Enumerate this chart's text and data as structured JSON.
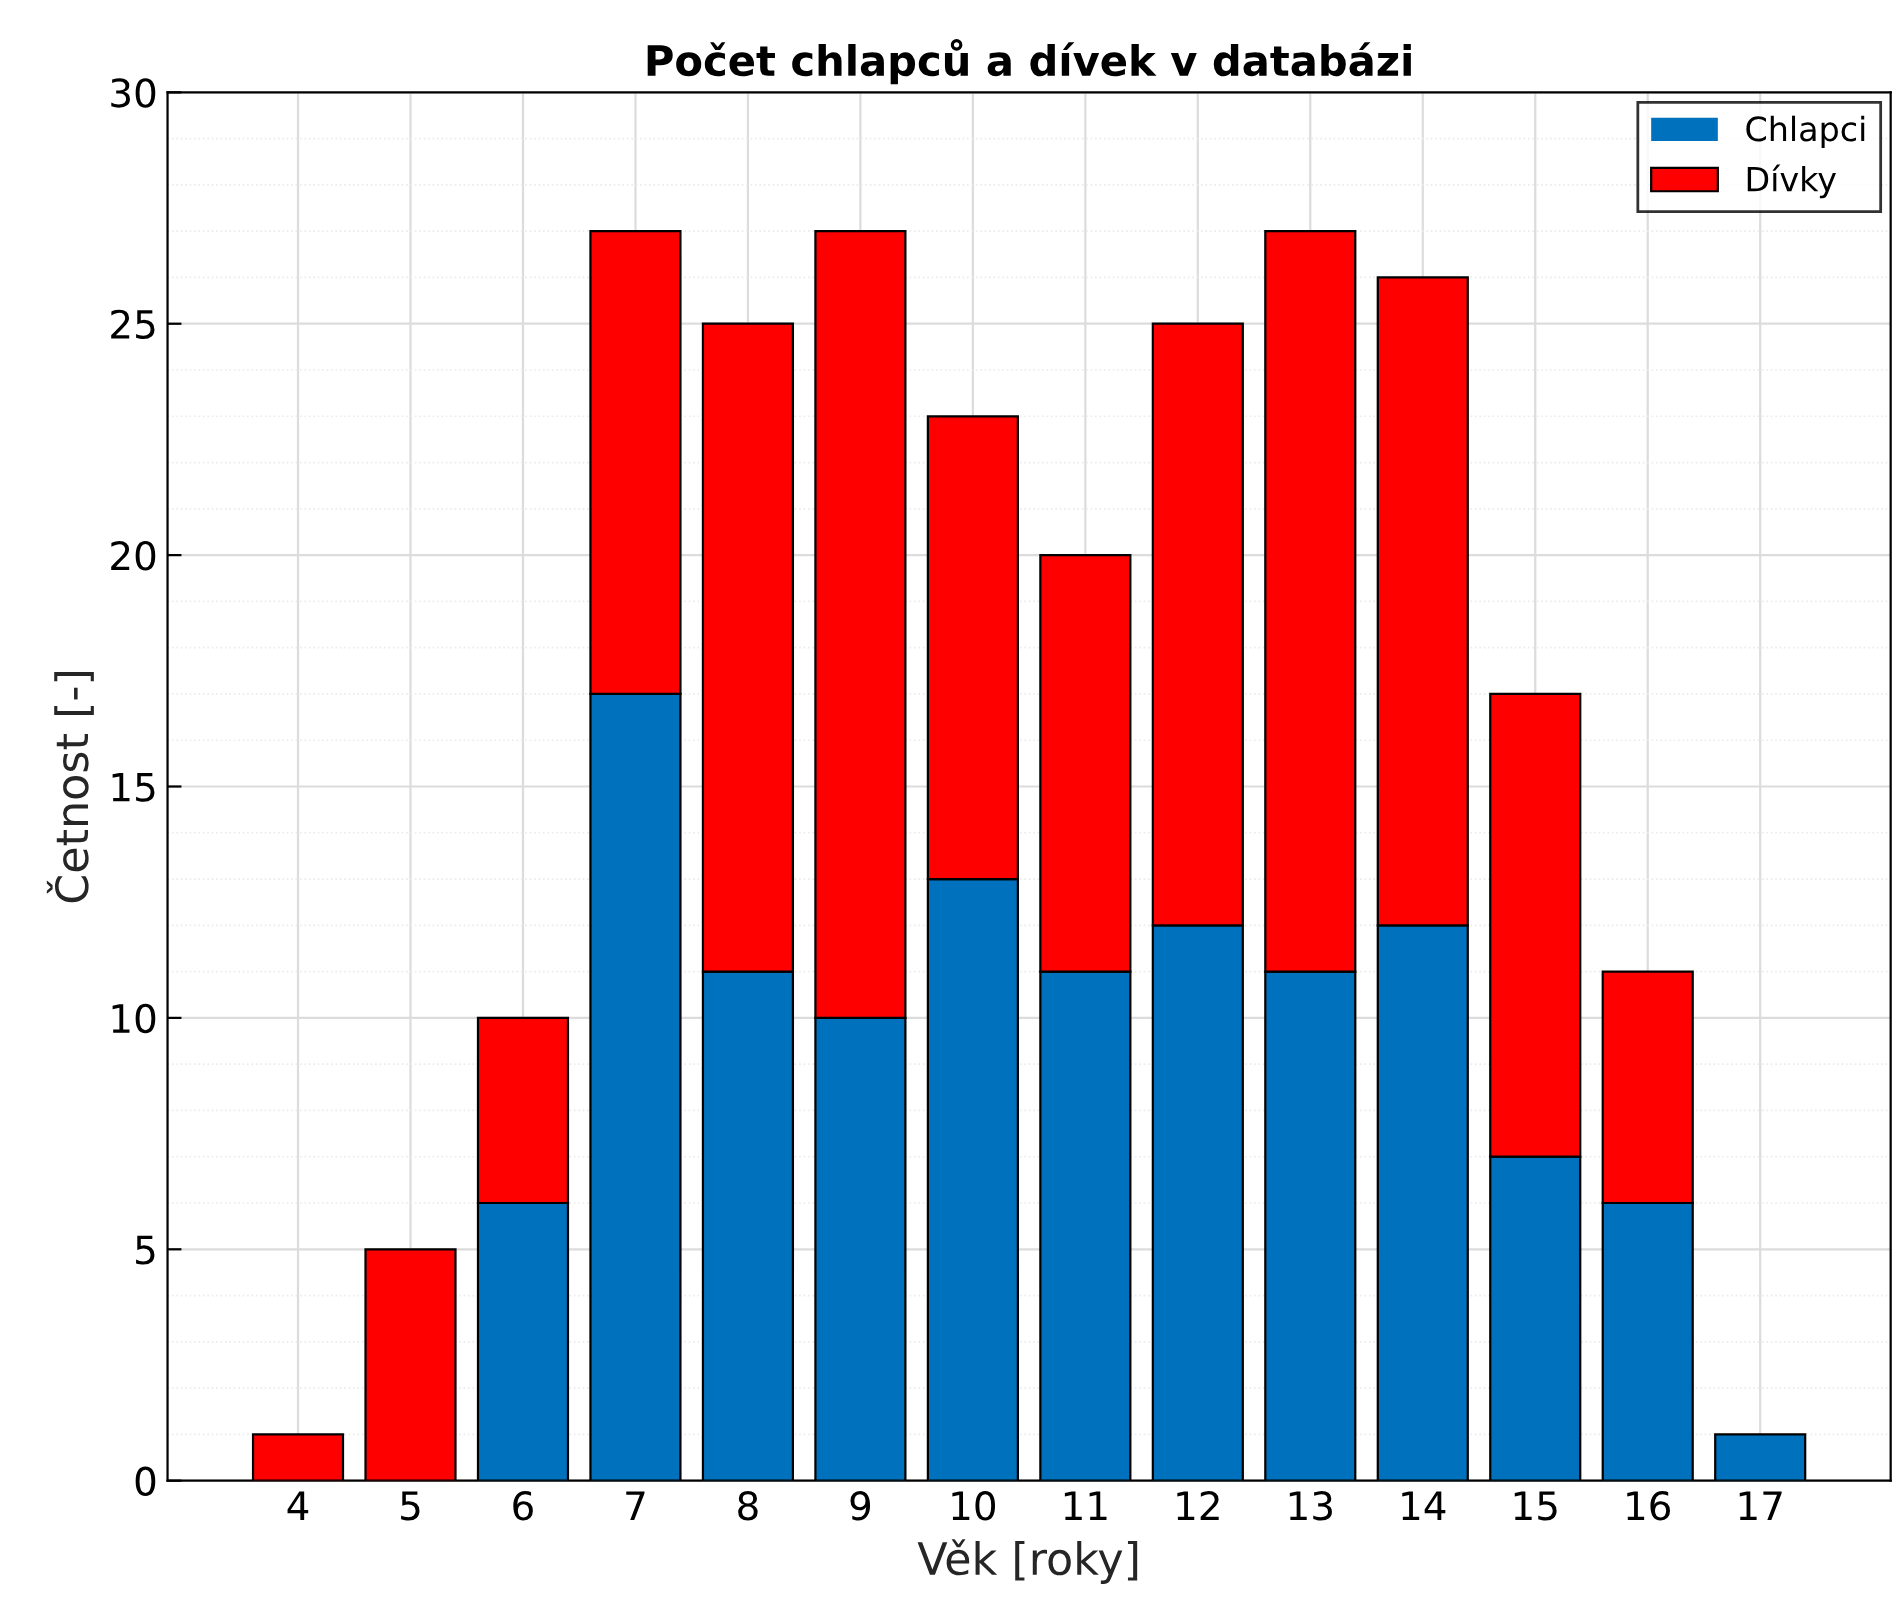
{
  "chart_data": {
    "type": "bar",
    "title": "Počet chlapců a dívek v databázi",
    "xlabel": "Věk [roky]",
    "ylabel": "Četnost [-]",
    "categories": [
      "4",
      "5",
      "6",
      "7",
      "8",
      "9",
      "10",
      "11",
      "12",
      "13",
      "14",
      "15",
      "16",
      "17"
    ],
    "stacked": true,
    "series": [
      {
        "name": "Chlapci",
        "color": "#0072bd",
        "values": [
          0,
          0,
          6,
          17,
          11,
          10,
          13,
          11,
          12,
          11,
          12,
          7,
          6,
          1
        ]
      },
      {
        "name": "Dívky",
        "color": "#ff0000",
        "values": [
          1,
          5,
          4,
          10,
          14,
          17,
          10,
          9,
          13,
          16,
          14,
          10,
          5,
          0
        ]
      }
    ],
    "ylim": [
      0,
      30
    ],
    "yticks": [
      0,
      5,
      10,
      15,
      20,
      25,
      30
    ],
    "grid": true,
    "legend": "top right"
  }
}
